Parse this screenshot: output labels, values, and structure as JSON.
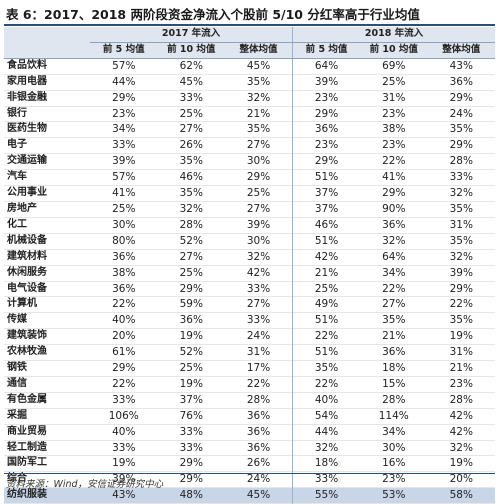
{
  "title": "表 6：2017、2018 两阶段资金净流入个股前 5/10 分红率高于行业均值",
  "header": {
    "group1": "2017 年流入",
    "group2": "2018 年流入",
    "cols": [
      "前 5 均值",
      "前 10 均值",
      "整体均值",
      "前 5 均值",
      "前 10 均值",
      "整体均值"
    ]
  },
  "rows": [
    {
      "name": "食品饮料",
      "v": [
        "57%",
        "62%",
        "45%",
        "64%",
        "69%",
        "43%"
      ]
    },
    {
      "name": "家用电器",
      "v": [
        "44%",
        "45%",
        "35%",
        "39%",
        "25%",
        "36%"
      ]
    },
    {
      "name": "非银金融",
      "v": [
        "29%",
        "33%",
        "32%",
        "23%",
        "31%",
        "29%"
      ]
    },
    {
      "name": "银行",
      "v": [
        "23%",
        "25%",
        "21%",
        "29%",
        "23%",
        "24%"
      ]
    },
    {
      "name": "医药生物",
      "v": [
        "34%",
        "27%",
        "35%",
        "36%",
        "38%",
        "35%"
      ]
    },
    {
      "name": "电子",
      "v": [
        "33%",
        "26%",
        "27%",
        "23%",
        "23%",
        "29%"
      ]
    },
    {
      "name": "交通运输",
      "v": [
        "39%",
        "35%",
        "30%",
        "29%",
        "22%",
        "28%"
      ]
    },
    {
      "name": "汽车",
      "v": [
        "57%",
        "46%",
        "29%",
        "51%",
        "41%",
        "33%"
      ]
    },
    {
      "name": "公用事业",
      "v": [
        "41%",
        "35%",
        "25%",
        "37%",
        "29%",
        "32%"
      ]
    },
    {
      "name": "房地产",
      "v": [
        "25%",
        "32%",
        "27%",
        "37%",
        "90%",
        "35%"
      ]
    },
    {
      "name": "化工",
      "v": [
        "30%",
        "28%",
        "39%",
        "46%",
        "36%",
        "31%"
      ]
    },
    {
      "name": "机械设备",
      "v": [
        "80%",
        "52%",
        "30%",
        "51%",
        "32%",
        "35%"
      ]
    },
    {
      "name": "建筑材料",
      "v": [
        "36%",
        "27%",
        "32%",
        "42%",
        "64%",
        "32%"
      ]
    },
    {
      "name": "休闲服务",
      "v": [
        "38%",
        "25%",
        "42%",
        "21%",
        "34%",
        "39%"
      ]
    },
    {
      "name": "电气设备",
      "v": [
        "36%",
        "29%",
        "33%",
        "25%",
        "22%",
        "29%"
      ]
    },
    {
      "name": "计算机",
      "v": [
        "22%",
        "59%",
        "27%",
        "49%",
        "27%",
        "22%"
      ]
    },
    {
      "name": "传媒",
      "v": [
        "40%",
        "36%",
        "33%",
        "51%",
        "35%",
        "35%"
      ]
    },
    {
      "name": "建筑装饰",
      "v": [
        "20%",
        "19%",
        "24%",
        "22%",
        "21%",
        "19%"
      ]
    },
    {
      "name": "农林牧渔",
      "v": [
        "61%",
        "52%",
        "31%",
        "51%",
        "36%",
        "31%"
      ]
    },
    {
      "name": "钢铁",
      "v": [
        "29%",
        "25%",
        "17%",
        "35%",
        "18%",
        "21%"
      ]
    },
    {
      "name": "通信",
      "v": [
        "22%",
        "19%",
        "22%",
        "22%",
        "15%",
        "23%"
      ]
    },
    {
      "name": "有色金属",
      "v": [
        "33%",
        "37%",
        "28%",
        "40%",
        "28%",
        "28%"
      ]
    },
    {
      "name": "采掘",
      "v": [
        "106%",
        "76%",
        "36%",
        "54%",
        "114%",
        "42%"
      ]
    },
    {
      "name": "商业贸易",
      "v": [
        "40%",
        "33%",
        "36%",
        "44%",
        "34%",
        "42%"
      ]
    },
    {
      "name": "轻工制造",
      "v": [
        "33%",
        "33%",
        "36%",
        "32%",
        "30%",
        "32%"
      ]
    },
    {
      "name": "国防军工",
      "v": [
        "19%",
        "29%",
        "26%",
        "18%",
        "16%",
        "19%"
      ]
    },
    {
      "name": "综合",
      "v": [
        "39%",
        "29%",
        "24%",
        "33%",
        "23%",
        "20%"
      ]
    },
    {
      "name": "纺织服装",
      "v": [
        "43%",
        "48%",
        "45%",
        "55%",
        "53%",
        "58%"
      ],
      "highlight": true
    }
  ],
  "source": "资料来源：Wind，安信证券研究中心"
}
